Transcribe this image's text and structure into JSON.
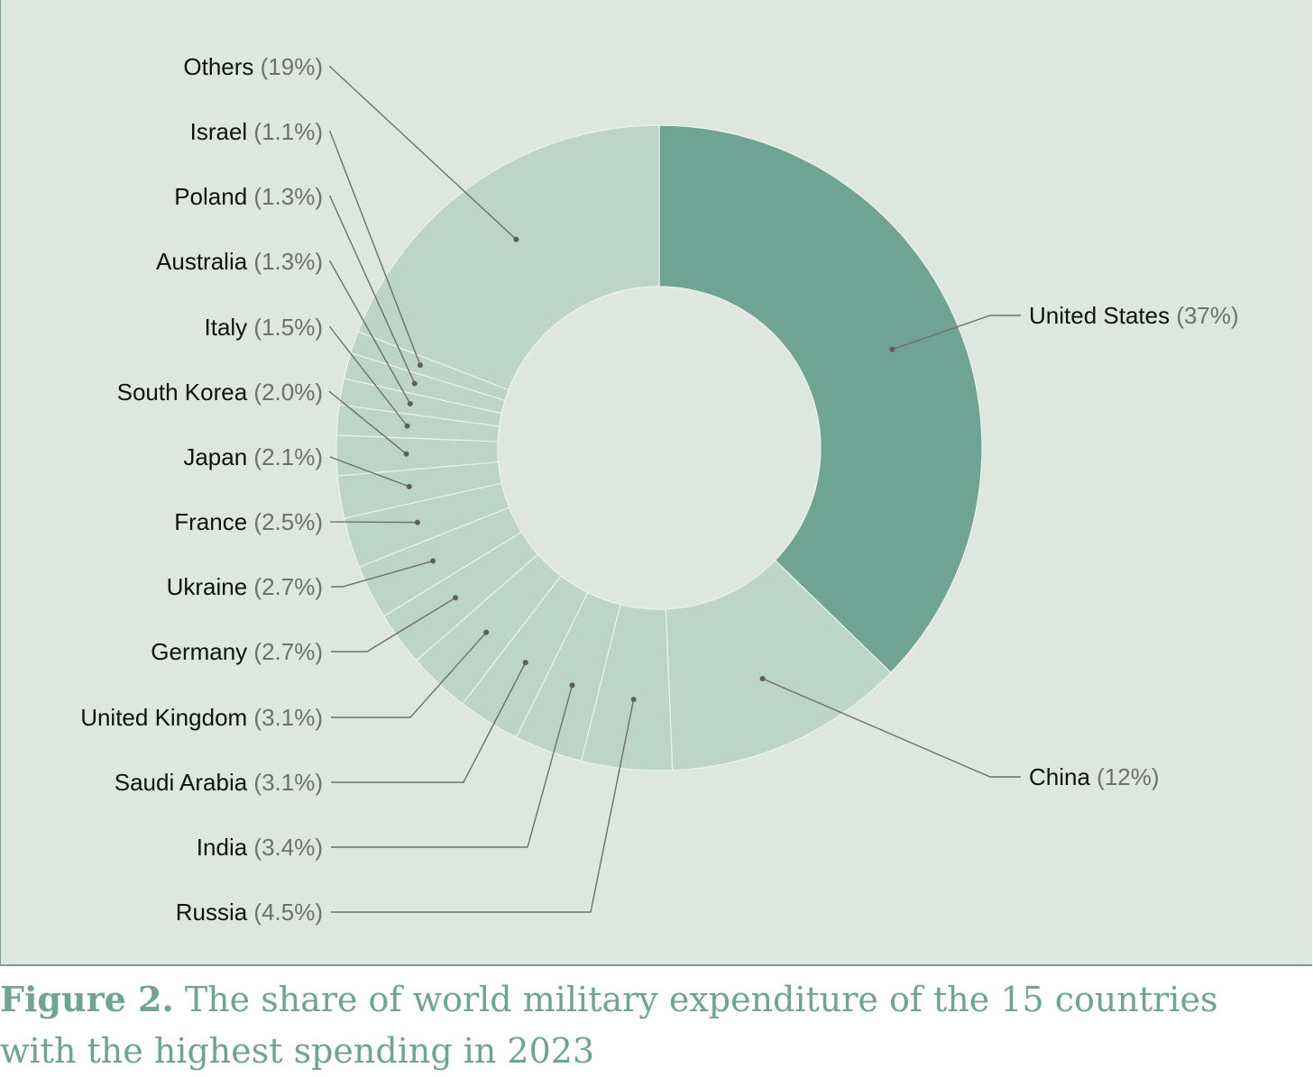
{
  "chart_data": {
    "type": "pie",
    "variant": "donut",
    "legend": "none",
    "slices": [
      {
        "label": "United States",
        "percent_label": "(37%)",
        "value": 37
      },
      {
        "label": "China",
        "percent_label": "(12%)",
        "value": 12
      },
      {
        "label": "Russia",
        "percent_label": "(4.5%)",
        "value": 4.5
      },
      {
        "label": "India",
        "percent_label": "(3.4%)",
        "value": 3.4
      },
      {
        "label": "Saudi Arabia",
        "percent_label": "(3.1%)",
        "value": 3.1
      },
      {
        "label": "United Kingdom",
        "percent_label": "(3.1%)",
        "value": 3.1
      },
      {
        "label": "Germany",
        "percent_label": "(2.7%)",
        "value": 2.7
      },
      {
        "label": "Ukraine",
        "percent_label": "(2.7%)",
        "value": 2.7
      },
      {
        "label": "France",
        "percent_label": "(2.5%)",
        "value": 2.5
      },
      {
        "label": "Japan",
        "percent_label": "(2.1%)",
        "value": 2.1
      },
      {
        "label": "South Korea",
        "percent_label": "(2.0%)",
        "value": 2.0
      },
      {
        "label": "Italy",
        "percent_label": "(1.5%)",
        "value": 1.5
      },
      {
        "label": "Australia",
        "percent_label": "(1.3%)",
        "value": 1.3
      },
      {
        "label": "Poland",
        "percent_label": "(1.3%)",
        "value": 1.3
      },
      {
        "label": "Israel",
        "percent_label": "(1.1%)",
        "value": 1.1
      },
      {
        "label": "Others",
        "percent_label": "(19%)",
        "value": 19
      }
    ],
    "colors": {
      "highlight": "#6fa494",
      "slice": "#bdd4c8",
      "background": "#dde7df",
      "leader": "#6f6f6f"
    },
    "highlighted": [
      "United States"
    ]
  },
  "caption": {
    "label": "Figure 2.",
    "text": "The share of world military expenditure of the 15 countries with the highest spending in 2023"
  }
}
